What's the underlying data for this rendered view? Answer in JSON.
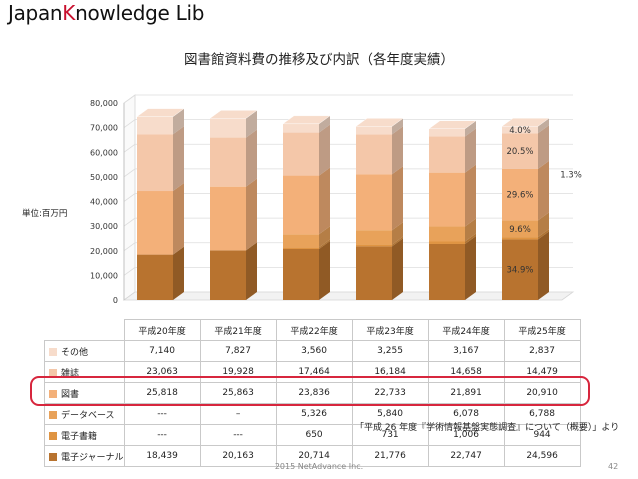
{
  "brand": {
    "part1": "Japan",
    "part2": "K",
    "part3": "nowledge",
    "part4": " Lib"
  },
  "page_title": "図書館資料費の推移及び内訳（各年度実績）",
  "unit_label": "単位:百万円",
  "source_note": "「平成 26 年度『学術情報基盤実態調査』について（概要）」より",
  "footer": "2015 NetAdvance Inc.",
  "page_number": "42",
  "colors": {
    "電子ジャーナル": "#b8732f",
    "電子書籍": "#df9442",
    "データベース": "#e8a25a",
    "図書": "#f3b079",
    "雑誌": "#f4c7a9",
    "その他": "#f7dccb",
    "highlight": "#d7263d"
  },
  "chart_data": {
    "type": "bar",
    "stacked": true,
    "three_d": true,
    "categories": [
      "平成20年度",
      "平成21年度",
      "平成22年度",
      "平成23年度",
      "平成24年度",
      "平成25年度"
    ],
    "ylim": [
      0,
      80000
    ],
    "yticks": [
      0,
      10000,
      20000,
      30000,
      40000,
      50000,
      60000,
      70000,
      80000
    ],
    "ytick_labels": [
      "0",
      "10,000",
      "20,000",
      "30,000",
      "40,000",
      "50,000",
      "60,000",
      "70,000",
      "80,000"
    ],
    "series": [
      {
        "name": "電子ジャーナル",
        "values": [
          18439,
          20163,
          20714,
          21776,
          22747,
          24596
        ]
      },
      {
        "name": "電子書籍",
        "values": [
          0,
          0,
          650,
          731,
          1006,
          944
        ]
      },
      {
        "name": "データベース",
        "values": [
          0,
          0,
          5326,
          5840,
          6078,
          6788
        ]
      },
      {
        "name": "図書",
        "values": [
          25818,
          25863,
          23836,
          22733,
          21891,
          20910
        ]
      },
      {
        "name": "雑誌",
        "values": [
          23063,
          19928,
          17464,
          16184,
          14658,
          14479
        ]
      },
      {
        "name": "その他",
        "values": [
          7140,
          7827,
          3560,
          3255,
          3167,
          2837
        ]
      }
    ],
    "annotations": [
      {
        "text": "34.9%",
        "series": "電子ジャーナル",
        "category": "平成25年度"
      },
      {
        "text": "1.3%",
        "series": "電子書籍",
        "category": "平成25年度",
        "outside": true
      },
      {
        "text": "9.6%",
        "series": "データベース",
        "category": "平成25年度"
      },
      {
        "text": "29.6%",
        "series": "図書",
        "category": "平成25年度"
      },
      {
        "text": "20.5%",
        "series": "雑誌",
        "category": "平成25年度"
      },
      {
        "text": "4.0%",
        "series": "その他",
        "category": "平成25年度"
      }
    ]
  },
  "table": {
    "rows": [
      {
        "label": "その他",
        "color": "#f7dccb",
        "values": [
          "7,140",
          "7,827",
          "3,560",
          "3,255",
          "3,167",
          "2,837"
        ]
      },
      {
        "label": "雑誌",
        "color": "#f4c7a9",
        "values": [
          "23,063",
          "19,928",
          "17,464",
          "16,184",
          "14,658",
          "14,479"
        ]
      },
      {
        "label": "図書",
        "color": "#f3b079",
        "values": [
          "25,818",
          "25,863",
          "23,836",
          "22,733",
          "21,891",
          "20,910"
        ]
      },
      {
        "label": "データベース",
        "color": "#e8a25a",
        "values": [
          "---",
          "–",
          "5,326",
          "5,840",
          "6,078",
          "6,788"
        ]
      },
      {
        "label": "電子書籍",
        "color": "#df9442",
        "values": [
          "---",
          "---",
          "650",
          "731",
          "1,006",
          "944"
        ]
      },
      {
        "label": "電子ジャーナル",
        "color": "#b8732f",
        "values": [
          "18,439",
          "20,163",
          "20,714",
          "21,776",
          "22,747",
          "24,596"
        ]
      }
    ]
  }
}
